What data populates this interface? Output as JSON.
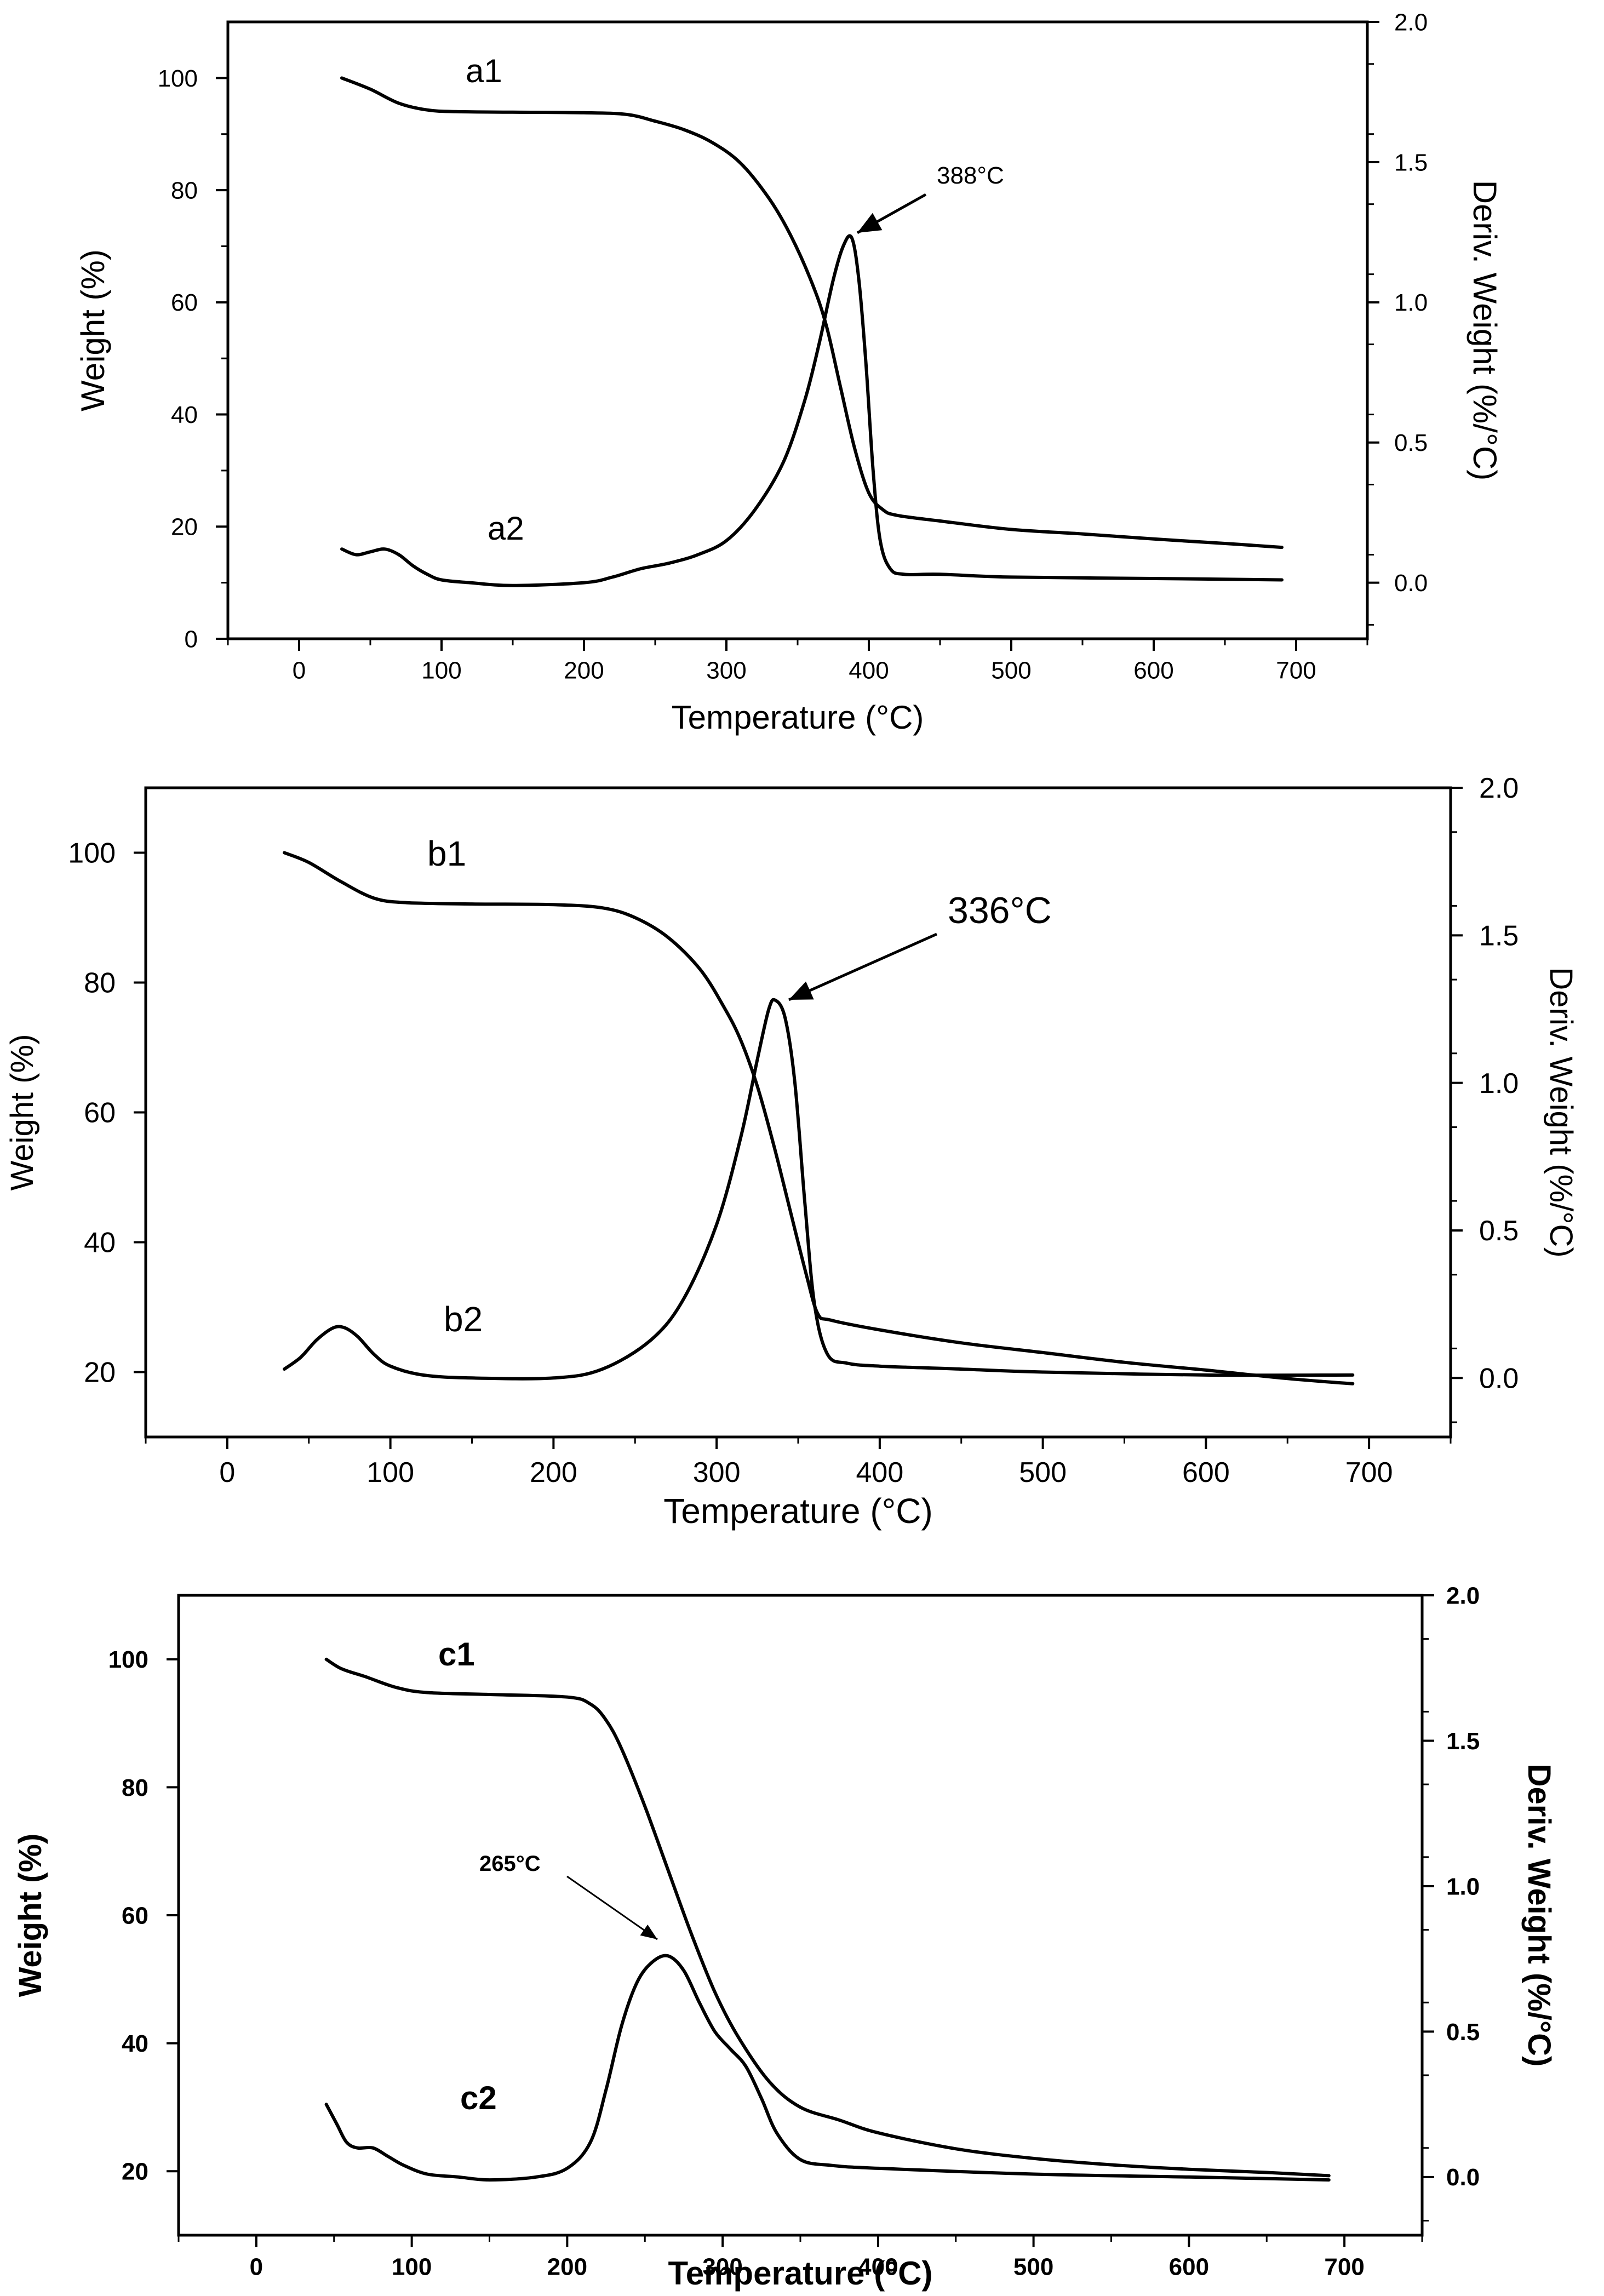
{
  "chart_data": [
    {
      "id": "a",
      "type": "line",
      "xlabel": "Temperature (°C)",
      "ylabel": "Weight (%)",
      "y2label": "Deriv. Weight (%/°C)",
      "xlim": [
        -50,
        750
      ],
      "ylim": [
        0,
        110
      ],
      "y2lim": [
        -0.2,
        2.0
      ],
      "xticks": [
        0,
        100,
        200,
        300,
        400,
        500,
        600,
        700
      ],
      "xtick_labels": [
        "0",
        "100",
        "200",
        "300",
        "400",
        "500",
        "600",
        "700"
      ],
      "yticks": [
        0,
        20,
        40,
        60,
        80,
        100
      ],
      "ytick_labels": [
        "0",
        "20",
        "40",
        "60",
        "80",
        "100"
      ],
      "y2ticks": [
        0.0,
        0.5,
        1.0,
        1.5,
        2.0
      ],
      "y2tick_labels": [
        "0.0",
        "0.5",
        "1.0",
        "1.5",
        "2.0"
      ],
      "series": [
        {
          "name": "a1",
          "axis": "left",
          "x": [
            30,
            50,
            70,
            90,
            110,
            150,
            200,
            230,
            250,
            270,
            290,
            310,
            330,
            345,
            360,
            370,
            380,
            390,
            400,
            410,
            420,
            450,
            500,
            550,
            600,
            650,
            690
          ],
          "y": [
            100,
            98,
            95.5,
            94.3,
            94,
            93.9,
            93.8,
            93.5,
            92.3,
            90.8,
            88.5,
            84.8,
            78.5,
            72,
            63.5,
            56,
            45,
            34,
            26,
            23,
            22,
            21,
            19.5,
            18.7,
            17.8,
            17,
            16.3
          ]
        },
        {
          "name": "a2",
          "axis": "right",
          "x": [
            30,
            40,
            50,
            60,
            70,
            80,
            90,
            100,
            120,
            150,
            200,
            220,
            240,
            260,
            280,
            300,
            320,
            340,
            355,
            365,
            375,
            382,
            388,
            393,
            398,
            403,
            408,
            415,
            425,
            450,
            500,
            600,
            690
          ],
          "y": [
            0.12,
            0.1,
            0.11,
            0.12,
            0.1,
            0.06,
            0.03,
            0.01,
            0.0,
            -0.01,
            0.0,
            0.02,
            0.05,
            0.07,
            0.1,
            0.15,
            0.26,
            0.43,
            0.65,
            0.85,
            1.08,
            1.2,
            1.23,
            1.08,
            0.78,
            0.4,
            0.15,
            0.05,
            0.03,
            0.03,
            0.02,
            0.015,
            0.01
          ]
        }
      ],
      "annotations": [
        {
          "text": "388°C",
          "x": 388,
          "y_axis": "right",
          "y": 1.23
        },
        {
          "text": "a1",
          "series": "a1"
        },
        {
          "text": "a2",
          "series": "a2"
        }
      ]
    },
    {
      "id": "b",
      "type": "line",
      "xlabel": "Temperature (°C)",
      "ylabel": "Weight (%)",
      "y2label": "Deriv. Weight (%/°C)",
      "xlim": [
        -50,
        750
      ],
      "ylim": [
        10,
        110
      ],
      "y2lim": [
        -0.2,
        2.0
      ],
      "xticks": [
        0,
        100,
        200,
        300,
        400,
        500,
        600,
        700
      ],
      "xtick_labels": [
        "0",
        "100",
        "200",
        "300",
        "400",
        "500",
        "600",
        "700"
      ],
      "yticks": [
        20,
        40,
        60,
        80,
        100
      ],
      "ytick_labels": [
        "20",
        "40",
        "60",
        "80",
        "100"
      ],
      "y2ticks": [
        0.0,
        0.5,
        1.0,
        1.5,
        2.0
      ],
      "y2tick_labels": [
        "0.0",
        "0.5",
        "1.0",
        "1.5",
        "2.0"
      ],
      "series": [
        {
          "name": "b1",
          "axis": "left",
          "x": [
            35,
            50,
            70,
            90,
            110,
            150,
            200,
            230,
            250,
            270,
            290,
            305,
            315,
            325,
            335,
            345,
            355,
            362,
            370,
            400,
            450,
            500,
            550,
            600,
            650,
            690
          ],
          "y": [
            100,
            98.5,
            95.5,
            93,
            92.3,
            92.1,
            92,
            91.5,
            90,
            87,
            82,
            76,
            71,
            64,
            55,
            45,
            35,
            29,
            28,
            26.5,
            24.5,
            23,
            21.5,
            20.3,
            19,
            18.2
          ]
        },
        {
          "name": "b2",
          "axis": "right",
          "x": [
            35,
            45,
            55,
            65,
            72,
            80,
            90,
            100,
            120,
            150,
            200,
            230,
            260,
            280,
            300,
            315,
            325,
            332,
            336,
            342,
            348,
            354,
            360,
            368,
            380,
            400,
            450,
            500,
            600,
            690
          ],
          "y": [
            0.03,
            0.07,
            0.13,
            0.17,
            0.17,
            0.14,
            0.08,
            0.04,
            0.01,
            0.0,
            0.0,
            0.03,
            0.13,
            0.27,
            0.52,
            0.82,
            1.08,
            1.25,
            1.28,
            1.22,
            1.0,
            0.6,
            0.25,
            0.08,
            0.05,
            0.04,
            0.03,
            0.02,
            0.01,
            0.01
          ]
        }
      ],
      "annotations": [
        {
          "text": "336°C",
          "x": 336,
          "y_axis": "right",
          "y": 1.28
        },
        {
          "text": "b1",
          "series": "b1"
        },
        {
          "text": "b2",
          "series": "b2"
        }
      ]
    },
    {
      "id": "c",
      "type": "line",
      "xlabel": "Temperature (°C)",
      "ylabel": "Weight (%)",
      "y2label": "Deriv. Weight (%/°C)",
      "xlim": [
        -50,
        750
      ],
      "ylim": [
        10,
        110
      ],
      "y2lim": [
        -0.2,
        2.0
      ],
      "xticks": [
        0,
        100,
        200,
        300,
        400,
        500,
        600,
        700
      ],
      "xtick_labels": [
        "0",
        "100",
        "200",
        "300",
        "400",
        "500",
        "600",
        "700"
      ],
      "yticks": [
        20,
        40,
        60,
        80,
        100
      ],
      "ytick_labels": [
        "20",
        "40",
        "60",
        "80",
        "100"
      ],
      "y2ticks": [
        0.0,
        0.5,
        1.0,
        1.5,
        2.0
      ],
      "y2tick_labels": [
        "0.0",
        "0.5",
        "1.0",
        "1.5",
        "2.0"
      ],
      "series": [
        {
          "name": "c1",
          "axis": "left",
          "x": [
            45,
            55,
            70,
            90,
            110,
            150,
            200,
            215,
            225,
            235,
            250,
            265,
            280,
            295,
            310,
            330,
            350,
            375,
            400,
            450,
            500,
            550,
            600,
            650,
            690
          ],
          "y": [
            100,
            98.5,
            97.3,
            95.6,
            94.8,
            94.5,
            94.1,
            93,
            90.5,
            86,
            77,
            67,
            57,
            48,
            41,
            34,
            30,
            28,
            26,
            23.5,
            22,
            21,
            20.3,
            19.8,
            19.3
          ]
        },
        {
          "name": "c2",
          "axis": "right",
          "x": [
            45,
            52,
            58,
            65,
            75,
            85,
            95,
            110,
            130,
            150,
            180,
            200,
            215,
            225,
            235,
            245,
            255,
            265,
            275,
            285,
            295,
            305,
            315,
            325,
            335,
            350,
            370,
            400,
            500,
            600,
            690
          ],
          "y": [
            0.25,
            0.18,
            0.12,
            0.1,
            0.1,
            0.07,
            0.04,
            0.01,
            0.0,
            -0.01,
            0.0,
            0.03,
            0.12,
            0.3,
            0.52,
            0.67,
            0.74,
            0.76,
            0.71,
            0.6,
            0.5,
            0.44,
            0.38,
            0.27,
            0.15,
            0.06,
            0.04,
            0.03,
            0.01,
            0.0,
            -0.01
          ]
        }
      ],
      "annotations": [
        {
          "text": "265°C",
          "x": 265,
          "y_axis": "right",
          "y": 0.76
        },
        {
          "text": "c1",
          "series": "c1"
        },
        {
          "text": "c2",
          "series": "c2"
        }
      ]
    }
  ]
}
